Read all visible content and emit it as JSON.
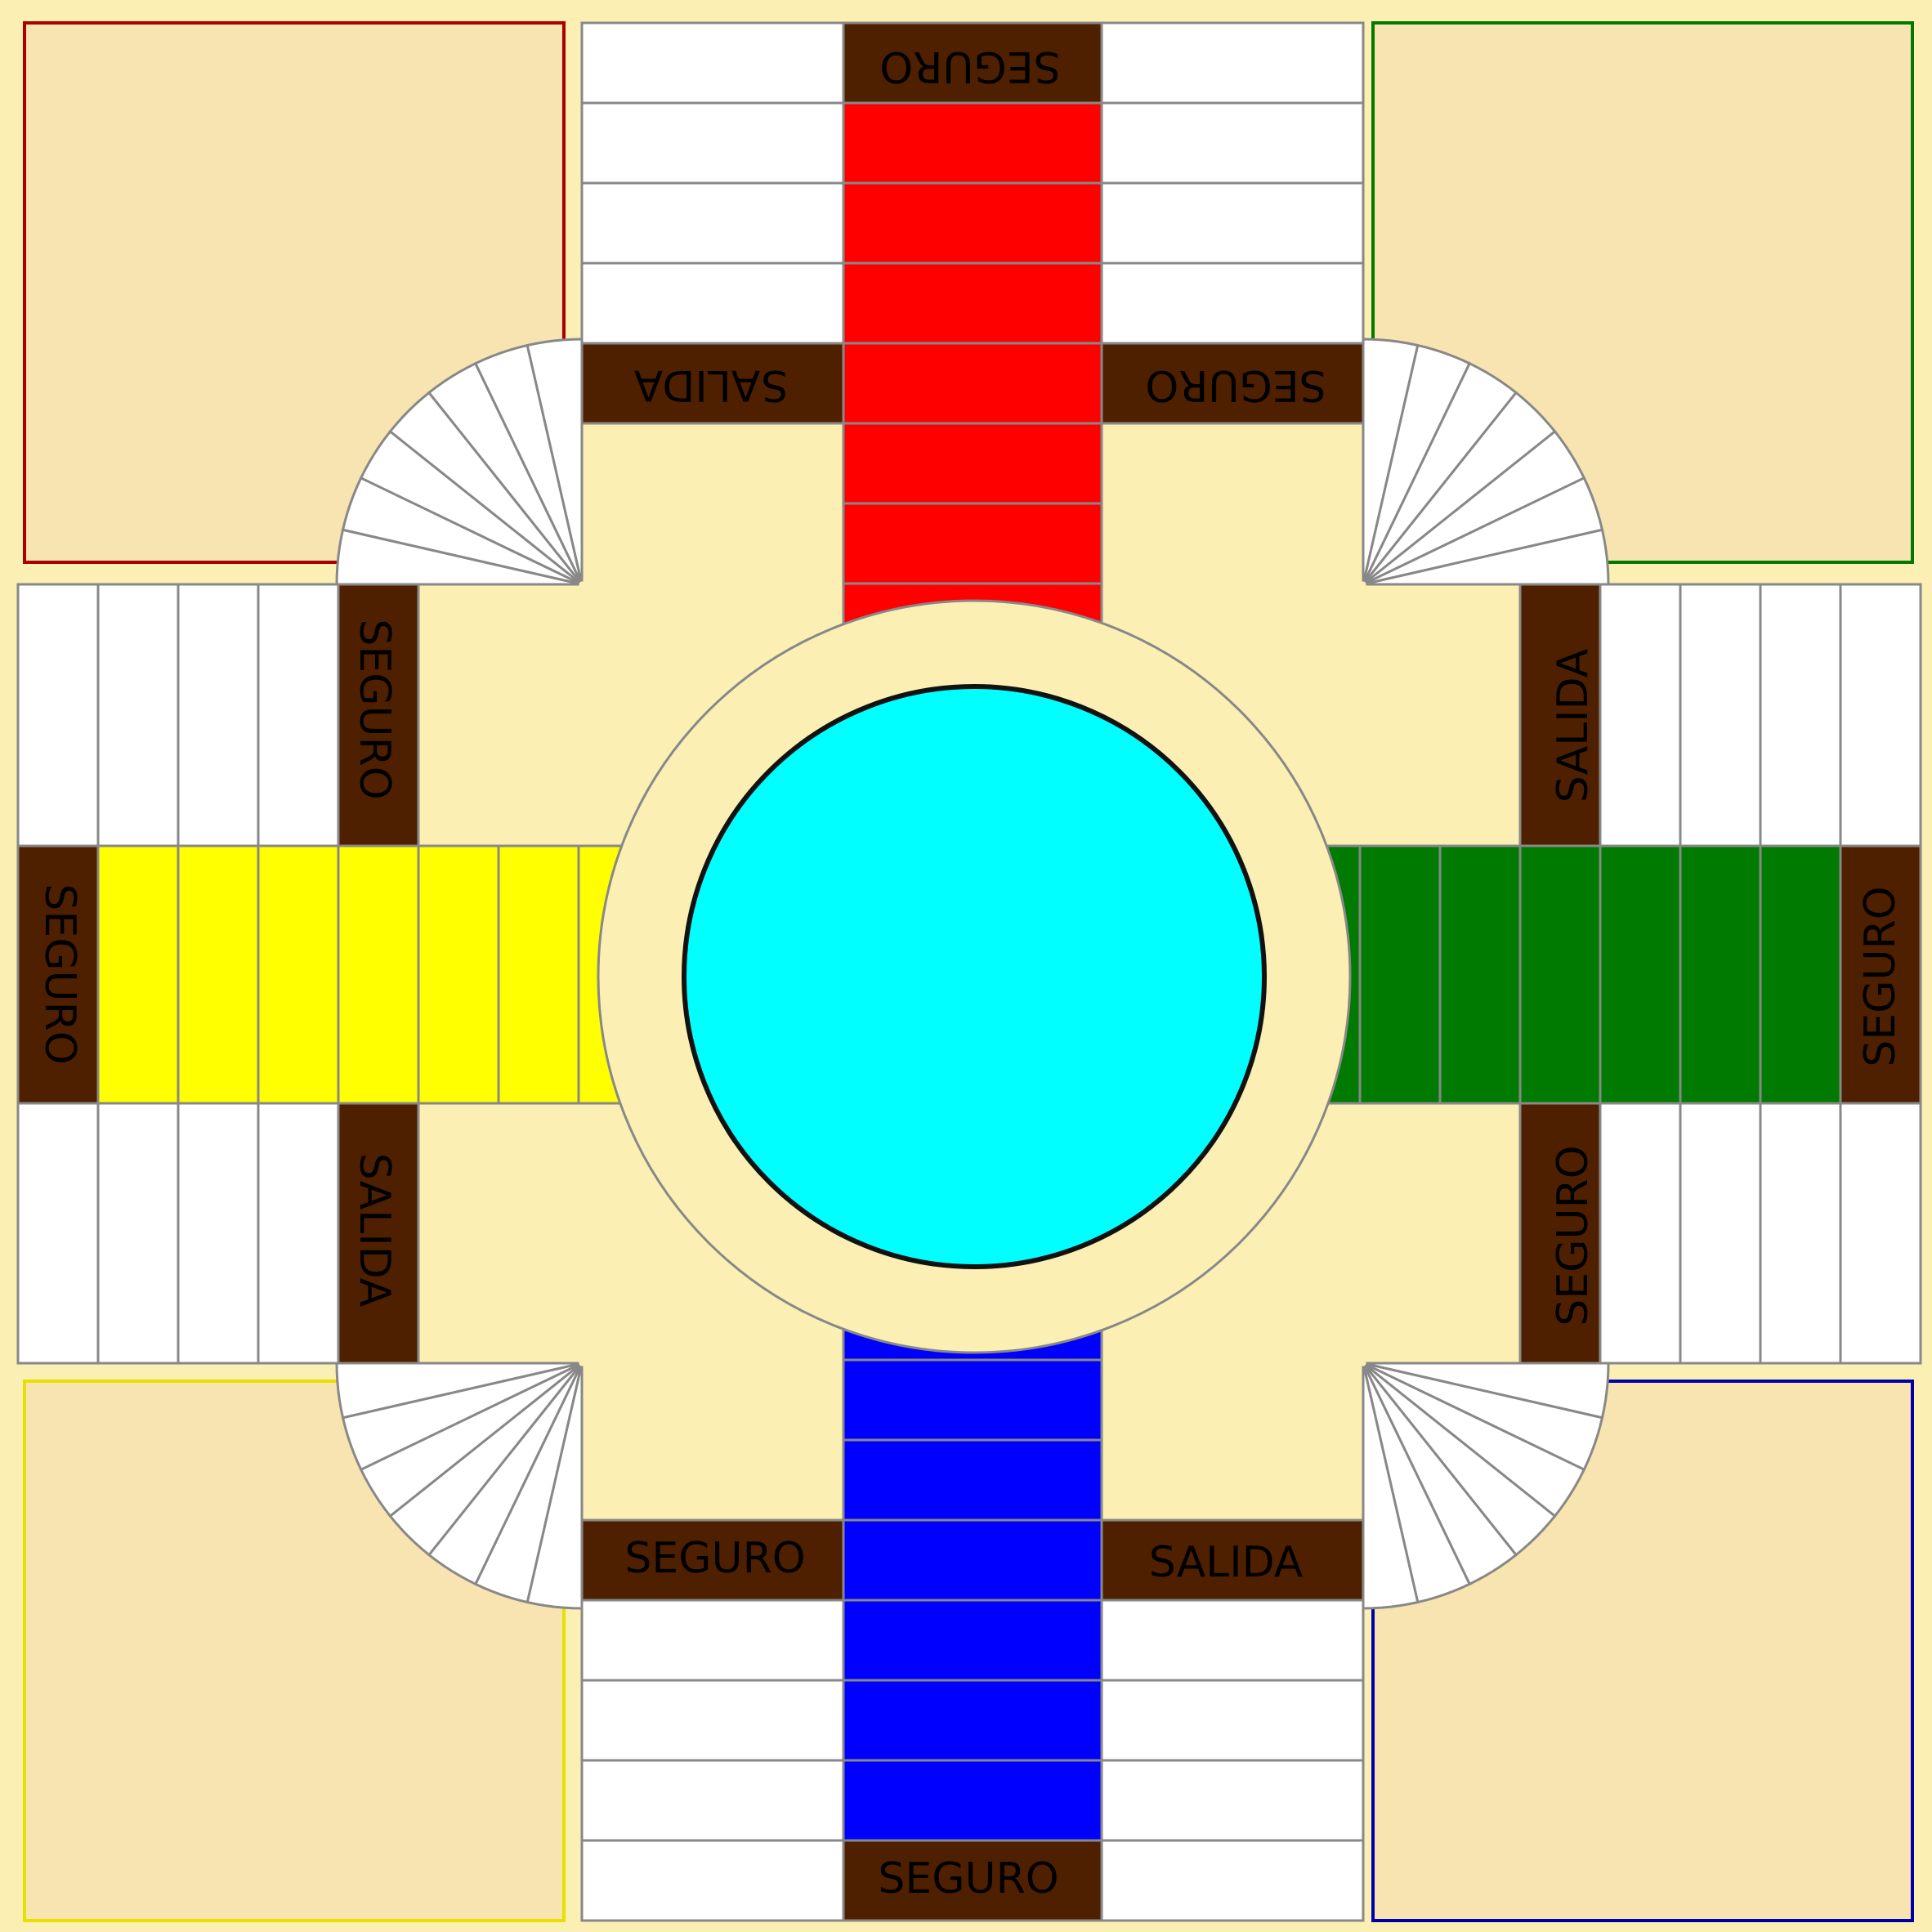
{
  "board": {
    "background": "#fbefb4",
    "path_border": "#888888",
    "center_color": "#00ffff",
    "special_square_color": "#4f2000",
    "home_fill": "#f8e4b0",
    "arms": [
      {
        "id": "top",
        "lane_color": "#ff0000",
        "home_border": "#aa0000"
      },
      {
        "id": "right",
        "lane_color": "#007a00",
        "home_border": "#007a00"
      },
      {
        "id": "bottom",
        "lane_color": "#0000ff",
        "home_border": "#0000aa"
      },
      {
        "id": "left",
        "lane_color": "#ffff00",
        "home_border": "#e8e000"
      }
    ]
  },
  "labels": {
    "top_end": "SEGURO",
    "top_exit": "SALIDA",
    "top_safe": "SEGURO",
    "right_exit": "SALIDA",
    "right_end": "SEGURO",
    "right_safe": "SEGURO",
    "bottom_safe": "SEGURO",
    "bottom_exit": "SALIDA",
    "bottom_end": "SEGURO",
    "left_safe": "SEGURO",
    "left_end": "SEGURO",
    "left_exit": "SALIDA"
  }
}
